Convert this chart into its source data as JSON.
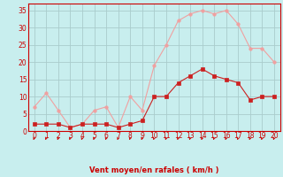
{
  "x": [
    0,
    1,
    2,
    3,
    4,
    5,
    6,
    7,
    8,
    9,
    10,
    11,
    12,
    13,
    14,
    15,
    16,
    17,
    18,
    19,
    20
  ],
  "rafales": [
    7,
    11,
    6,
    1,
    2,
    6,
    7,
    1,
    10,
    6,
    19,
    25,
    32,
    34,
    35,
    34,
    35,
    31,
    24,
    24,
    20
  ],
  "moyen": [
    2,
    2,
    2,
    1,
    2,
    2,
    2,
    1,
    2,
    3,
    10,
    10,
    14,
    16,
    18,
    16,
    15,
    14,
    9,
    10,
    10
  ],
  "bg_color": "#c8eeee",
  "line_color_rafales": "#f0a0a0",
  "line_color_moyen": "#cc2020",
  "grid_color": "#aacccc",
  "axis_color": "#cc0000",
  "xlabel": "Vent moyen/en rafales ( km/h )",
  "ylim": [
    0,
    37
  ],
  "xlim": [
    -0.5,
    20.5
  ],
  "yticks": [
    0,
    5,
    10,
    15,
    20,
    25,
    30,
    35
  ],
  "xticks": [
    0,
    1,
    2,
    3,
    4,
    5,
    6,
    7,
    8,
    9,
    10,
    11,
    12,
    13,
    14,
    15,
    16,
    17,
    18,
    19,
    20
  ],
  "tick_fontsize": 5.5,
  "xlabel_fontsize": 6.0,
  "marker_size": 2.5
}
